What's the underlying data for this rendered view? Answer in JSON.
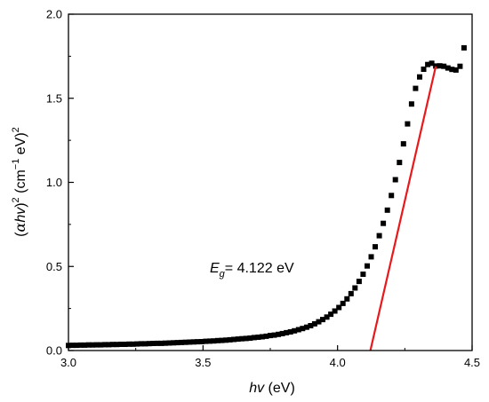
{
  "chart_data": {
    "type": "scatter",
    "xlabel": {
      "italic": "hv",
      "rest": " (eV)"
    },
    "ylabel": {
      "open": "(",
      "alpha": "α",
      "hv": "hv",
      "close": ")",
      "sup1": "2",
      "unit": " (cm",
      "sup2": "−1",
      "unit2": " eV)",
      "sup3": "2"
    },
    "xlim": [
      3.0,
      4.5
    ],
    "ylim": [
      0.0,
      2.0
    ],
    "x_ticks": [
      "3.0",
      "3.5",
      "4.0",
      "4.5"
    ],
    "y_ticks": [
      "0.0",
      "0.5",
      "1.0",
      "1.5",
      "2.0"
    ],
    "annotation": {
      "base": "E",
      "sub": "g",
      "text": "= 4.122 eV"
    },
    "fit_line": {
      "x": [
        4.122,
        4.365
      ],
      "y": [
        0.0,
        1.69
      ],
      "color": "#e8191c"
    },
    "series": [
      {
        "marker_color": "#000000",
        "x": [
          3.0,
          3.015,
          3.03,
          3.045,
          3.06,
          3.075,
          3.09,
          3.105,
          3.12,
          3.135,
          3.15,
          3.165,
          3.18,
          3.195,
          3.21,
          3.225,
          3.24,
          3.255,
          3.27,
          3.285,
          3.3,
          3.315,
          3.33,
          3.345,
          3.36,
          3.375,
          3.39,
          3.405,
          3.42,
          3.435,
          3.45,
          3.465,
          3.48,
          3.495,
          3.51,
          3.525,
          3.54,
          3.555,
          3.57,
          3.585,
          3.6,
          3.615,
          3.63,
          3.645,
          3.66,
          3.675,
          3.69,
          3.705,
          3.72,
          3.735,
          3.75,
          3.765,
          3.78,
          3.795,
          3.81,
          3.825,
          3.84,
          3.855,
          3.87,
          3.885,
          3.9,
          3.915,
          3.93,
          3.945,
          3.96,
          3.975,
          3.99,
          4.005,
          4.02,
          4.035,
          4.05,
          4.065,
          4.08,
          4.095,
          4.11,
          4.125,
          4.14,
          4.155,
          4.17,
          4.185,
          4.2,
          4.215,
          4.23,
          4.245,
          4.26,
          4.275,
          4.29,
          4.305,
          4.32,
          4.335,
          4.35,
          4.365,
          4.38,
          4.395,
          4.41,
          4.425,
          4.44,
          4.455,
          4.47
        ],
        "y": [
          0.03,
          0.031,
          0.031,
          0.032,
          0.032,
          0.033,
          0.033,
          0.034,
          0.034,
          0.035,
          0.035,
          0.036,
          0.036,
          0.037,
          0.037,
          0.038,
          0.038,
          0.039,
          0.04,
          0.04,
          0.041,
          0.042,
          0.043,
          0.043,
          0.044,
          0.045,
          0.046,
          0.047,
          0.048,
          0.049,
          0.05,
          0.051,
          0.052,
          0.053,
          0.055,
          0.056,
          0.057,
          0.059,
          0.06,
          0.062,
          0.064,
          0.066,
          0.068,
          0.07,
          0.072,
          0.074,
          0.077,
          0.079,
          0.082,
          0.085,
          0.089,
          0.092,
          0.096,
          0.101,
          0.106,
          0.111,
          0.117,
          0.124,
          0.131,
          0.139,
          0.148,
          0.159,
          0.171,
          0.184,
          0.199,
          0.216,
          0.235,
          0.256,
          0.28,
          0.307,
          0.338,
          0.372,
          0.411,
          0.454,
          0.503,
          0.557,
          0.617,
          0.683,
          0.756,
          0.835,
          0.922,
          1.016,
          1.118,
          1.229,
          1.348,
          1.466,
          1.559,
          1.627,
          1.673,
          1.701,
          1.708,
          1.692,
          1.693,
          1.69,
          1.68,
          1.672,
          1.668,
          1.69,
          1.8
        ]
      }
    ]
  }
}
